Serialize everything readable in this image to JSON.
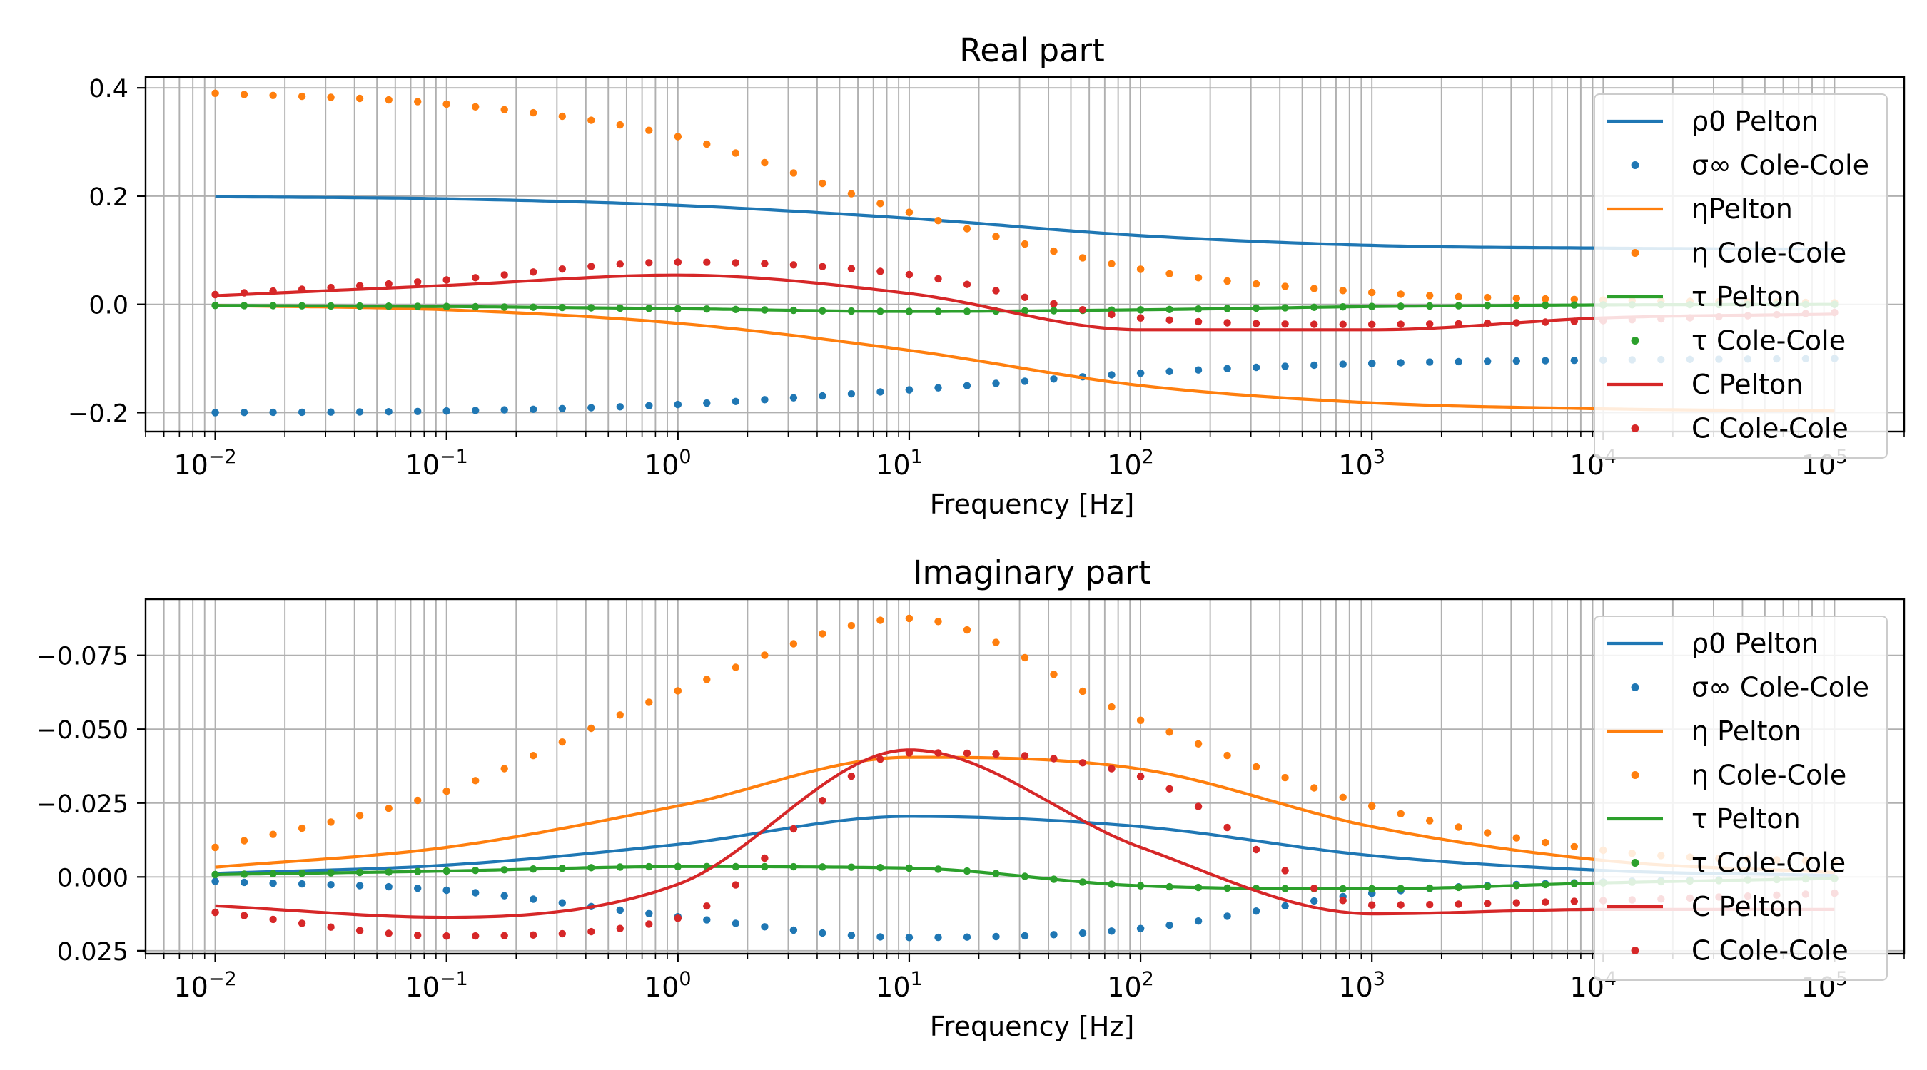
{
  "chart_data": [
    {
      "type": "line",
      "title": "Real part",
      "xlabel": "Frequency [Hz]",
      "ylabel": "",
      "xscale": "log",
      "xlim": [
        0.005,
        200000
      ],
      "ylim": [
        -0.235,
        0.42
      ],
      "y_inverted": false,
      "grid": "both (major and minor x)",
      "legend_position": "right",
      "x_ticks": [
        {
          "value": 0.01,
          "base": "10",
          "exp": "−2"
        },
        {
          "value": 0.1,
          "base": "10",
          "exp": "−1"
        },
        {
          "value": 1,
          "base": "10",
          "exp": "0"
        },
        {
          "value": 10,
          "base": "10",
          "exp": "1"
        },
        {
          "value": 100,
          "base": "10",
          "exp": "2"
        },
        {
          "value": 1000,
          "base": "10",
          "exp": "3"
        },
        {
          "value": 10000,
          "base": "10",
          "exp": "4"
        },
        {
          "value": 100000,
          "base": "10",
          "exp": "5"
        }
      ],
      "y_ticks": [
        {
          "value": 0.4,
          "label": "0.4"
        },
        {
          "value": 0.2,
          "label": "0.2"
        },
        {
          "value": 0.0,
          "label": "0.0"
        },
        {
          "value": -0.2,
          "label": "−0.2"
        }
      ],
      "series": [
        {
          "name": "ρ0 Pelton",
          "color": "#1f77b4",
          "style": "line",
          "x": [
            0.01,
            0.1,
            1,
            10,
            100,
            1000,
            10000,
            100000
          ],
          "y": [
            0.199,
            0.195,
            0.183,
            0.159,
            0.127,
            0.109,
            0.104,
            0.102
          ]
        },
        {
          "name": "σ∞ Cole-Cole",
          "color": "#1f77b4",
          "style": "dots",
          "x": [
            0.01,
            0.1,
            1,
            10,
            100,
            1000,
            10000,
            100000
          ],
          "y": [
            -0.2,
            -0.197,
            -0.185,
            -0.158,
            -0.127,
            -0.109,
            -0.103,
            -0.1
          ]
        },
        {
          "name": "ηPelton",
          "color": "#ff7f0e",
          "style": "line",
          "x": [
            0.01,
            0.1,
            1,
            10,
            100,
            1000,
            10000,
            100000
          ],
          "y": [
            -0.002,
            -0.01,
            -0.035,
            -0.085,
            -0.15,
            -0.182,
            -0.193,
            -0.197
          ]
        },
        {
          "name": "η Cole-Cole",
          "color": "#ff7f0e",
          "style": "dots",
          "x": [
            0.01,
            0.1,
            1,
            10,
            100,
            1000,
            10000,
            100000
          ],
          "y": [
            0.39,
            0.37,
            0.31,
            0.17,
            0.065,
            0.022,
            0.008,
            0.003
          ]
        },
        {
          "name": "τ Pelton",
          "color": "#2ca02c",
          "style": "line",
          "x": [
            0.01,
            0.1,
            1,
            10,
            100,
            1000,
            10000,
            100000
          ],
          "y": [
            -0.002,
            -0.004,
            -0.008,
            -0.013,
            -0.01,
            -0.004,
            -0.001,
            0.0
          ]
        },
        {
          "name": "τ Cole-Cole",
          "color": "#2ca02c",
          "style": "dots",
          "x": [
            0.01,
            0.1,
            1,
            10,
            100,
            1000,
            10000,
            100000
          ],
          "y": [
            -0.002,
            -0.004,
            -0.008,
            -0.013,
            -0.01,
            -0.004,
            -0.001,
            0.0
          ]
        },
        {
          "name": "C Pelton",
          "color": "#d62728",
          "style": "line",
          "x": [
            0.01,
            0.1,
            1,
            10,
            100,
            1000,
            10000,
            100000
          ],
          "y": [
            0.016,
            0.035,
            0.054,
            0.02,
            -0.047,
            -0.047,
            -0.025,
            -0.018
          ]
        },
        {
          "name": "C Cole-Cole",
          "color": "#d62728",
          "style": "dots",
          "x": [
            0.01,
            0.1,
            1,
            10,
            100,
            1000,
            10000,
            100000
          ],
          "y": [
            0.018,
            0.045,
            0.078,
            0.055,
            -0.025,
            -0.037,
            -0.03,
            -0.015
          ]
        }
      ]
    },
    {
      "type": "line",
      "title": "Imaginary part",
      "xlabel": "Frequency [Hz]",
      "ylabel": "",
      "xscale": "log",
      "xlim": [
        0.005,
        200000
      ],
      "ylim": [
        0.026,
        -0.094
      ],
      "y_inverted": true,
      "grid": "both (major and minor x)",
      "legend_position": "right",
      "x_ticks": [
        {
          "value": 0.01,
          "base": "10",
          "exp": "−2"
        },
        {
          "value": 0.1,
          "base": "10",
          "exp": "−1"
        },
        {
          "value": 1,
          "base": "10",
          "exp": "0"
        },
        {
          "value": 10,
          "base": "10",
          "exp": "1"
        },
        {
          "value": 100,
          "base": "10",
          "exp": "2"
        },
        {
          "value": 1000,
          "base": "10",
          "exp": "3"
        },
        {
          "value": 10000,
          "base": "10",
          "exp": "4"
        },
        {
          "value": 100000,
          "base": "10",
          "exp": "5"
        }
      ],
      "y_ticks": [
        {
          "value": -0.075,
          "label": "−0.075"
        },
        {
          "value": -0.05,
          "label": "−0.050"
        },
        {
          "value": -0.025,
          "label": "−0.025"
        },
        {
          "value": 0.0,
          "label": "0.000"
        },
        {
          "value": 0.025,
          "label": "0.025"
        }
      ],
      "series": [
        {
          "name": "ρ0 Pelton",
          "color": "#1f77b4",
          "style": "line",
          "x": [
            0.01,
            0.1,
            1,
            10,
            100,
            1000,
            10000,
            100000
          ],
          "y": [
            -0.0012,
            -0.004,
            -0.011,
            -0.0205,
            -0.017,
            -0.0072,
            -0.0022,
            -0.0005
          ]
        },
        {
          "name": "σ∞ Cole-Cole",
          "color": "#1f77b4",
          "style": "dots",
          "x": [
            0.01,
            0.1,
            1,
            10,
            100,
            1000,
            10000,
            100000
          ],
          "y": [
            0.0015,
            0.0045,
            0.0135,
            0.0205,
            0.0175,
            0.0055,
            0.0017,
            0.0005
          ]
        },
        {
          "name": "η Pelton",
          "color": "#ff7f0e",
          "style": "line",
          "x": [
            0.01,
            0.1,
            1,
            10,
            100,
            1000,
            10000,
            100000
          ],
          "y": [
            -0.0033,
            -0.01,
            -0.024,
            -0.0405,
            -0.0365,
            -0.017,
            -0.0056,
            -0.0015
          ]
        },
        {
          "name": "η Cole-Cole",
          "color": "#ff7f0e",
          "style": "dots",
          "x": [
            0.01,
            0.1,
            1,
            10,
            100,
            1000,
            10000,
            100000
          ],
          "y": [
            -0.01,
            -0.029,
            -0.063,
            -0.0875,
            -0.053,
            -0.024,
            -0.009,
            -0.005
          ]
        },
        {
          "name": "τ Pelton",
          "color": "#2ca02c",
          "style": "line",
          "x": [
            0.01,
            0.1,
            1,
            10,
            100,
            1000,
            10000,
            100000
          ],
          "y": [
            -0.0008,
            -0.002,
            -0.0035,
            -0.003,
            0.003,
            0.004,
            0.002,
            0.0005
          ]
        },
        {
          "name": "τ Cole-Cole",
          "color": "#2ca02c",
          "style": "dots",
          "x": [
            0.01,
            0.1,
            1,
            10,
            100,
            1000,
            10000,
            100000
          ],
          "y": [
            -0.0008,
            -0.002,
            -0.0035,
            -0.003,
            0.003,
            0.004,
            0.002,
            0.0005
          ]
        },
        {
          "name": "C Pelton",
          "color": "#d62728",
          "style": "line",
          "x": [
            0.01,
            0.1,
            1,
            10,
            100,
            1000,
            10000,
            100000
          ],
          "y": [
            0.0098,
            0.0137,
            0.0025,
            -0.043,
            -0.01,
            0.0125,
            0.011,
            0.011
          ]
        },
        {
          "name": "C Cole-Cole",
          "color": "#d62728",
          "style": "dots",
          "x": [
            0.01,
            0.1,
            1,
            10,
            100,
            1000,
            10000,
            100000
          ],
          "y": [
            0.012,
            0.02,
            0.014,
            -0.042,
            -0.034,
            0.0095,
            0.008,
            0.0055
          ]
        }
      ]
    }
  ]
}
